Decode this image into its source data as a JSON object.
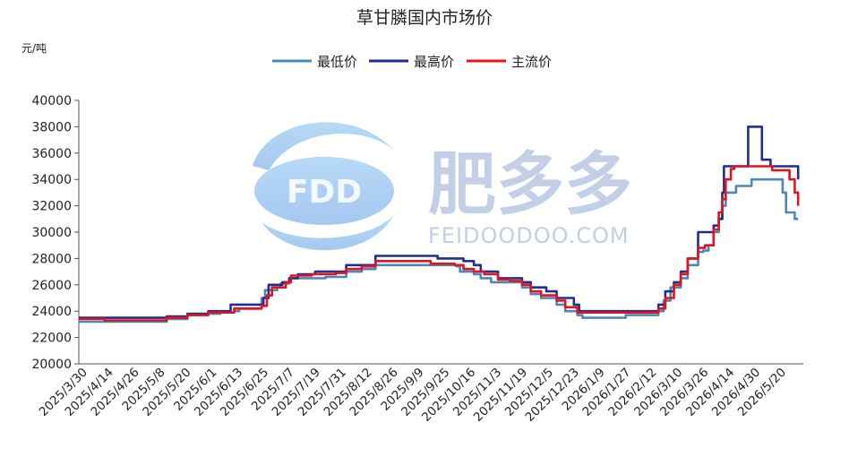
{
  "watermark": {
    "logo_text": "FDD",
    "name_cn": "肥多多",
    "name_en": "FEIDOODOO.COM"
  },
  "chart_data": {
    "type": "line",
    "title": "草甘膦国内市场价",
    "ylabel": "元/吨",
    "ylim": [
      20000,
      40000
    ],
    "yticks": [
      "20000",
      "22000",
      "24000",
      "26000",
      "28000",
      "30000",
      "32000",
      "34000",
      "36000",
      "38000",
      "40000"
    ],
    "xlim": [
      "2025-03-30",
      "2026-05-24"
    ],
    "xticks": [
      "2025/3/30",
      "2025/4/14",
      "2025/4/26",
      "2025/5/8",
      "2025/5/20",
      "2025/6/1",
      "2025/6/13",
      "2025/6/25",
      "2025/7/7",
      "2025/7/19",
      "2025/7/31",
      "2025/8/12",
      "2025/8/26",
      "2025/9/9",
      "2025/9/25",
      "2025/10/16",
      "2025/11/3",
      "2025/11/19",
      "2025/12/5",
      "2025/12/23",
      "2026/1/9",
      "2026/1/27",
      "2026/2/12",
      "2026/3/10",
      "2026/3/26",
      "2026/4/14",
      "2026/4/30",
      "2026/5/20"
    ],
    "grid": false,
    "legend": "top-center",
    "series": [
      {
        "name": "最低价",
        "color": "#4a88b8",
        "points": [
          [
            "2025-03-30",
            23200
          ],
          [
            "2025-04-14",
            23200
          ],
          [
            "2025-05-20",
            23400
          ],
          [
            "2025-06-01",
            23700
          ],
          [
            "2025-06-13",
            23800
          ],
          [
            "2025-06-20",
            23900
          ],
          [
            "2025-06-28",
            24000
          ],
          [
            "2025-07-01",
            24200
          ],
          [
            "2025-07-12",
            24200
          ],
          [
            "2025-07-14",
            25000
          ],
          [
            "2025-07-16",
            25600
          ],
          [
            "2025-07-23",
            25800
          ],
          [
            "2025-07-25",
            26100
          ],
          [
            "2025-07-30",
            26500
          ],
          [
            "2025-08-12",
            26500
          ],
          [
            "2025-08-20",
            26600
          ],
          [
            "2025-09-01",
            27000
          ],
          [
            "2025-09-10",
            27200
          ],
          [
            "2025-09-18",
            27500
          ],
          [
            "2025-10-14",
            27500
          ],
          [
            "2025-10-20",
            27500
          ],
          [
            "2025-11-04",
            27400
          ],
          [
            "2025-11-06",
            27000
          ],
          [
            "2025-11-10",
            27000
          ],
          [
            "2025-11-14",
            26800
          ],
          [
            "2025-11-18",
            26500
          ],
          [
            "2025-11-24",
            26200
          ],
          [
            "2025-12-05",
            26200
          ],
          [
            "2025-12-12",
            25800
          ],
          [
            "2025-12-17",
            25300
          ],
          [
            "2025-12-23",
            25000
          ],
          [
            "2026-01-01",
            24500
          ],
          [
            "2026-01-06",
            24000
          ],
          [
            "2026-01-13",
            23700
          ],
          [
            "2026-01-16",
            23500
          ],
          [
            "2026-02-10",
            23700
          ],
          [
            "2026-02-26",
            23700
          ],
          [
            "2026-03-01",
            24000
          ],
          [
            "2026-03-04",
            24800
          ],
          [
            "2026-03-08",
            25800
          ],
          [
            "2026-03-14",
            26500
          ],
          [
            "2026-03-18",
            27500
          ],
          [
            "2026-03-24",
            28500
          ],
          [
            "2026-03-27",
            28600
          ],
          [
            "2026-03-30",
            29000
          ],
          [
            "2026-04-02",
            30000
          ],
          [
            "2026-04-05",
            31000
          ],
          [
            "2026-04-07",
            32000
          ],
          [
            "2026-04-09",
            33000
          ],
          [
            "2026-04-13",
            33000
          ],
          [
            "2026-04-15",
            33500
          ],
          [
            "2026-04-22",
            33500
          ],
          [
            "2026-04-24",
            34000
          ],
          [
            "2026-05-10",
            34000
          ],
          [
            "2026-05-12",
            33000
          ],
          [
            "2026-05-14",
            31500
          ],
          [
            "2026-05-17",
            31500
          ],
          [
            "2026-05-19",
            31000
          ],
          [
            "2026-05-21",
            31000
          ]
        ]
      },
      {
        "name": "最高价",
        "color": "#1f2f8f",
        "points": [
          [
            "2025-03-30",
            23500
          ],
          [
            "2025-05-20",
            23600
          ],
          [
            "2025-06-01",
            23800
          ],
          [
            "2025-06-13",
            24000
          ],
          [
            "2025-06-26",
            24500
          ],
          [
            "2025-07-14",
            24500
          ],
          [
            "2025-07-15",
            25000
          ],
          [
            "2025-07-18",
            26000
          ],
          [
            "2025-07-26",
            26200
          ],
          [
            "2025-07-30",
            26500
          ],
          [
            "2025-08-04",
            26800
          ],
          [
            "2025-08-14",
            27000
          ],
          [
            "2025-08-26",
            27000
          ],
          [
            "2025-09-01",
            27500
          ],
          [
            "2025-09-15",
            27500
          ],
          [
            "2025-09-18",
            28200
          ],
          [
            "2025-10-18",
            28200
          ],
          [
            "2025-10-24",
            28000
          ],
          [
            "2025-11-03",
            28000
          ],
          [
            "2025-11-08",
            27800
          ],
          [
            "2025-11-14",
            27500
          ],
          [
            "2025-11-18",
            27000
          ],
          [
            "2025-11-28",
            26500
          ],
          [
            "2025-12-08",
            26500
          ],
          [
            "2025-12-12",
            26200
          ],
          [
            "2025-12-17",
            25800
          ],
          [
            "2025-12-26",
            25500
          ],
          [
            "2026-01-01",
            25000
          ],
          [
            "2026-01-08",
            25000
          ],
          [
            "2026-01-11",
            24500
          ],
          [
            "2026-01-14",
            24000
          ],
          [
            "2026-02-26",
            24000
          ],
          [
            "2026-03-01",
            24500
          ],
          [
            "2026-03-05",
            25500
          ],
          [
            "2026-03-10",
            26200
          ],
          [
            "2026-03-14",
            27000
          ],
          [
            "2026-03-18",
            28000
          ],
          [
            "2026-03-24",
            30000
          ],
          [
            "2026-03-30",
            30000
          ],
          [
            "2026-04-02",
            30500
          ],
          [
            "2026-04-05",
            31000
          ],
          [
            "2026-04-07",
            33000
          ],
          [
            "2026-04-08",
            35000
          ],
          [
            "2026-04-20",
            35000
          ],
          [
            "2026-04-22",
            38000
          ],
          [
            "2026-04-28",
            38000
          ],
          [
            "2026-04-30",
            35500
          ],
          [
            "2026-05-03",
            35500
          ],
          [
            "2026-05-05",
            35000
          ],
          [
            "2026-05-19",
            35000
          ],
          [
            "2026-05-21",
            34000
          ]
        ]
      },
      {
        "name": "主流价",
        "color": "#e0151f",
        "points": [
          [
            "2025-03-30",
            23400
          ],
          [
            "2025-04-14",
            23300
          ],
          [
            "2025-05-20",
            23500
          ],
          [
            "2025-06-01",
            23700
          ],
          [
            "2025-06-13",
            23900
          ],
          [
            "2025-06-28",
            24200
          ],
          [
            "2025-07-14",
            24400
          ],
          [
            "2025-07-17",
            25200
          ],
          [
            "2025-07-20",
            25800
          ],
          [
            "2025-07-28",
            26200
          ],
          [
            "2025-07-31",
            26700
          ],
          [
            "2025-08-12",
            26800
          ],
          [
            "2025-08-26",
            26900
          ],
          [
            "2025-09-01",
            27200
          ],
          [
            "2025-09-10",
            27400
          ],
          [
            "2025-09-18",
            27800
          ],
          [
            "2025-10-14",
            27800
          ],
          [
            "2025-10-20",
            27600
          ],
          [
            "2025-11-03",
            27500
          ],
          [
            "2025-11-08",
            27200
          ],
          [
            "2025-11-14",
            27000
          ],
          [
            "2025-11-20",
            26800
          ],
          [
            "2025-11-28",
            26400
          ],
          [
            "2025-12-05",
            26300
          ],
          [
            "2025-12-12",
            26000
          ],
          [
            "2025-12-17",
            25500
          ],
          [
            "2025-12-23",
            25200
          ],
          [
            "2026-01-01",
            24800
          ],
          [
            "2026-01-06",
            24300
          ],
          [
            "2026-01-13",
            23900
          ],
          [
            "2026-02-12",
            23900
          ],
          [
            "2026-02-26",
            23900
          ],
          [
            "2026-03-01",
            24200
          ],
          [
            "2026-03-05",
            25000
          ],
          [
            "2026-03-10",
            26000
          ],
          [
            "2026-03-14",
            26800
          ],
          [
            "2026-03-18",
            28000
          ],
          [
            "2026-03-24",
            28800
          ],
          [
            "2026-03-28",
            29000
          ],
          [
            "2026-04-02",
            30200
          ],
          [
            "2026-04-05",
            31500
          ],
          [
            "2026-04-07",
            32500
          ],
          [
            "2026-04-09",
            34000
          ],
          [
            "2026-04-12",
            34800
          ],
          [
            "2026-04-14",
            35000
          ],
          [
            "2026-05-04",
            35000
          ],
          [
            "2026-05-06",
            34700
          ],
          [
            "2026-05-14",
            34700
          ],
          [
            "2026-05-16",
            34000
          ],
          [
            "2026-05-19",
            33000
          ],
          [
            "2026-05-21",
            32000
          ]
        ]
      }
    ]
  }
}
